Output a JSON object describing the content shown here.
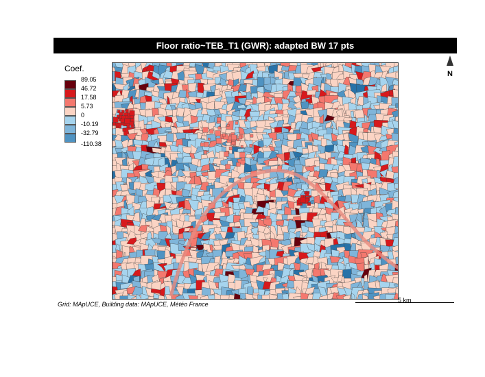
{
  "title": "Floor ratio~TEB_T1 (GWR): adapted BW 17 pts",
  "north_label": "N",
  "legend": {
    "title": "Coef.",
    "breaks": [
      "89.05",
      "46.72",
      "17.58",
      "5.73",
      "0",
      "-10.19",
      "-32.79",
      "-110.38"
    ],
    "colors": [
      "#67000d",
      "#d7191c",
      "#f4786e",
      "#fbd4c4",
      "#a6d4ee",
      "#7fb5da",
      "#4f93c2",
      "#2872a8"
    ]
  },
  "credit": "Grid: MApUCE, Building data: MApUCE, Météo France",
  "scale_bar": {
    "label": "5 km"
  },
  "map": {
    "icon": "choropleth-map-of-paris-districts",
    "border_color": "#3a3a3a"
  }
}
